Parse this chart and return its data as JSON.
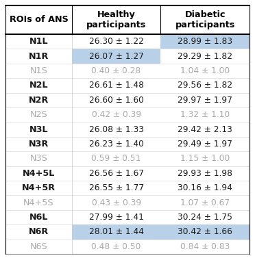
{
  "col_header": [
    "ROIs of ANS",
    "Healthy\nparticipants",
    "Diabetic\nparticipants"
  ],
  "rows": [
    {
      "label": "N1L",
      "bold": true,
      "healthy": "26.30 ± 1.22",
      "diabetic": "28.99 ± 1.83",
      "hl_healthy": false,
      "hl_diabetic": true
    },
    {
      "label": "N1R",
      "bold": true,
      "healthy": "26.07 ± 1.27",
      "diabetic": "29.29 ± 1.82",
      "hl_healthy": true,
      "hl_diabetic": false
    },
    {
      "label": "N1S",
      "bold": false,
      "healthy": "0.40 ± 0.28",
      "diabetic": "1.04 ± 1.00",
      "hl_healthy": false,
      "hl_diabetic": false
    },
    {
      "label": "N2L",
      "bold": true,
      "healthy": "26.61 ± 1.48",
      "diabetic": "29.56 ± 1.82",
      "hl_healthy": false,
      "hl_diabetic": false
    },
    {
      "label": "N2R",
      "bold": true,
      "healthy": "26.60 ± 1.60",
      "diabetic": "29.97 ± 1.97",
      "hl_healthy": false,
      "hl_diabetic": false
    },
    {
      "label": "N2S",
      "bold": false,
      "healthy": "0.42 ± 0.39",
      "diabetic": "1.32 ± 1.10",
      "hl_healthy": false,
      "hl_diabetic": false
    },
    {
      "label": "N3L",
      "bold": true,
      "healthy": "26.08 ± 1.33",
      "diabetic": "29.42 ± 2.13",
      "hl_healthy": false,
      "hl_diabetic": false
    },
    {
      "label": "N3R",
      "bold": true,
      "healthy": "26.23 ± 1.40",
      "diabetic": "29.49 ± 1.97",
      "hl_healthy": false,
      "hl_diabetic": false
    },
    {
      "label": "N3S",
      "bold": false,
      "healthy": "0.59 ± 0.51",
      "diabetic": "1.15 ± 1.00",
      "hl_healthy": false,
      "hl_diabetic": false
    },
    {
      "label": "N4+5L",
      "bold": true,
      "healthy": "26.56 ± 1.67",
      "diabetic": "29.93 ± 1.98",
      "hl_healthy": false,
      "hl_diabetic": false
    },
    {
      "label": "N4+5R",
      "bold": true,
      "healthy": "26.55 ± 1.77",
      "diabetic": "30.16 ± 1.94",
      "hl_healthy": false,
      "hl_diabetic": false
    },
    {
      "label": "N4+5S",
      "bold": false,
      "healthy": "0.43 ± 0.39",
      "diabetic": "1.07 ± 0.67",
      "hl_healthy": false,
      "hl_diabetic": false
    },
    {
      "label": "N6L",
      "bold": true,
      "healthy": "27.99 ± 1.41",
      "diabetic": "30.24 ± 1.75",
      "hl_healthy": false,
      "hl_diabetic": false
    },
    {
      "label": "N6R",
      "bold": true,
      "healthy": "28.01 ± 1.44",
      "diabetic": "30.42 ± 1.66",
      "hl_healthy": true,
      "hl_diabetic": true
    },
    {
      "label": "N6S",
      "bold": false,
      "healthy": "0.48 ± 0.50",
      "diabetic": "0.84 ± 0.83",
      "hl_healthy": false,
      "hl_diabetic": false
    }
  ],
  "highlight_color": "#b8d0e8",
  "gray_color": "#aaaaaa",
  "bold_color": "#1a1a1a",
  "figsize": [
    3.72,
    3.77
  ],
  "dpi": 100,
  "header_fontsize": 9.2,
  "cell_fontsize": 8.8,
  "label_fontsize": 9.2
}
